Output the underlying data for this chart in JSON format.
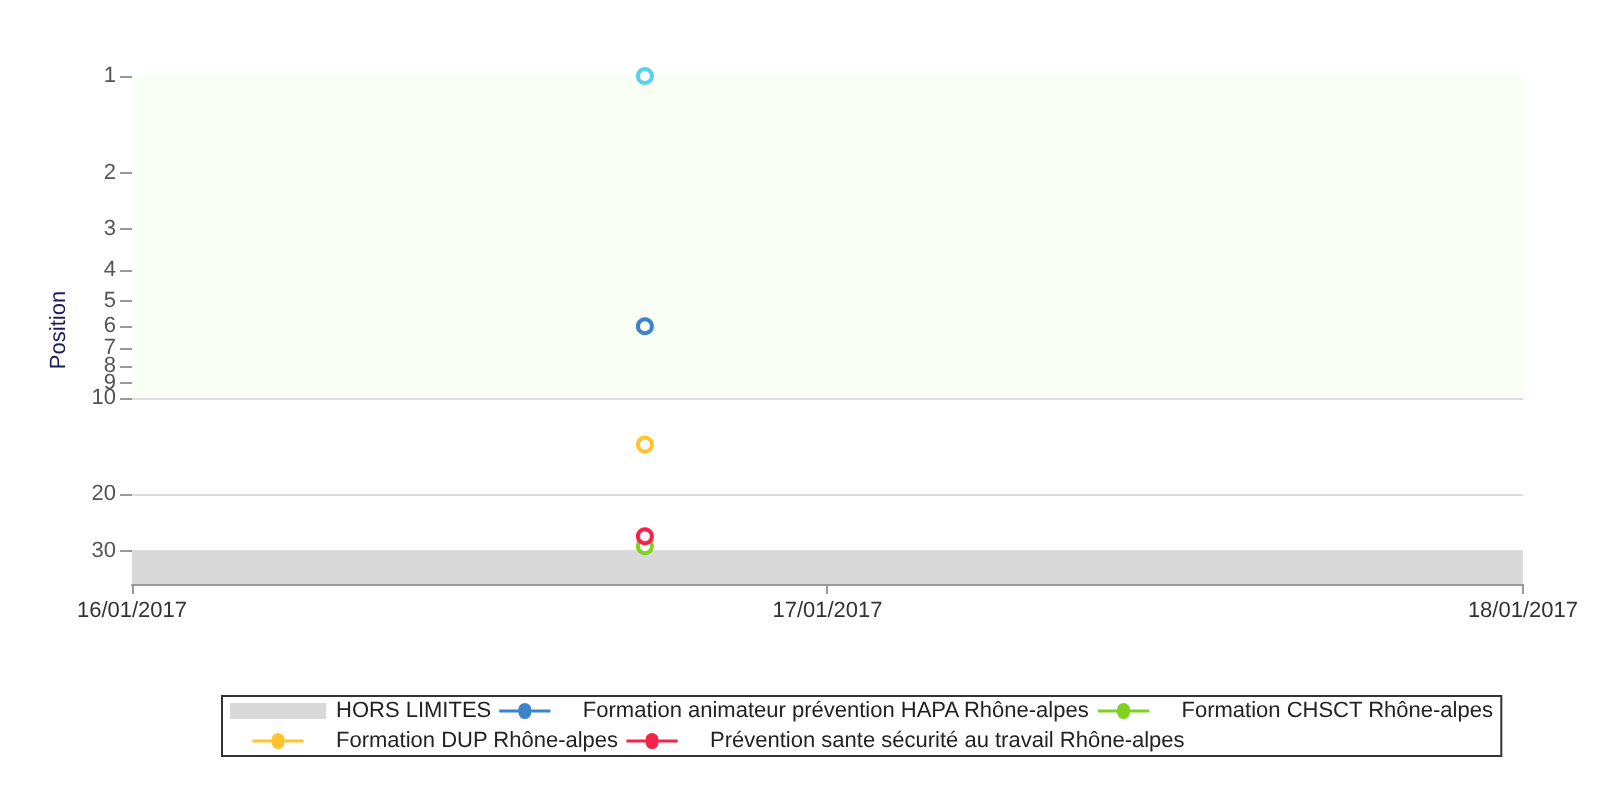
{
  "chart_data": {
    "type": "line",
    "ylabel": "Position",
    "log": "y",
    "x": [
      "2017-01-16T17:42"
    ],
    "xlim": [
      "2017-01-16",
      "2017-01-18"
    ],
    "xticks": [
      {
        "value": "2017-01-16",
        "label": "16/01/2017"
      },
      {
        "value": "2017-01-17",
        "label": "17/01/2017"
      },
      {
        "value": "2017-01-18",
        "label": "18/01/2017"
      }
    ],
    "ylim": [
      38,
      1
    ],
    "yticks": [
      1,
      2,
      3,
      4,
      5,
      6,
      7,
      8,
      9,
      10,
      20,
      30
    ],
    "grid": "y",
    "marker": "circle",
    "legend": "bottom",
    "bands": [
      {
        "axis": "y",
        "from": 1,
        "to": 10,
        "color": "#f9fff5"
      },
      {
        "axis": "y",
        "from": 30,
        "to": 38,
        "label": "HORS LIMITES",
        "color": "#d9d9d9"
      }
    ],
    "series": [
      {
        "name": "Formation animateur prévention HAPA Rhône-alpes",
        "color": "#3b84cc",
        "values": [
          6
        ]
      },
      {
        "name": "Formation CHSCT Rhône-alpes",
        "color": "#7ed321",
        "values": [
          29
        ]
      },
      {
        "name": "Formation DUP Rhône-alpes",
        "color": "#ffc42e",
        "values": [
          14
        ]
      },
      {
        "color": "#5bd0ee",
        "values": [
          1
        ]
      },
      {
        "name": "Prévention sante sécurité au travail Rhône-alpes",
        "color": "#f5224a",
        "values": [
          27
        ]
      }
    ]
  }
}
